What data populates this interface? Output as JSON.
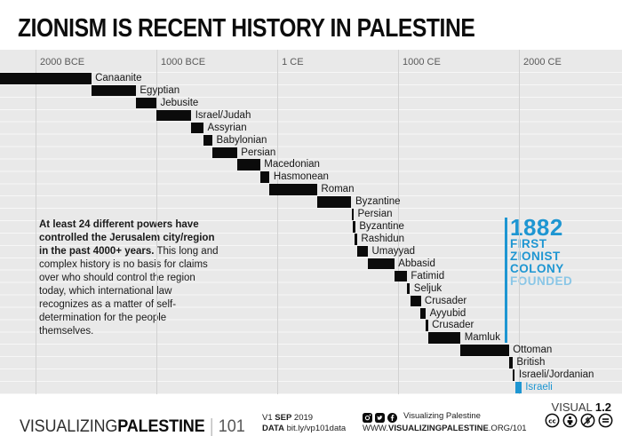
{
  "title": "ZIONISM IS RECENT HISTORY IN PALESTINE",
  "chart_data": {
    "type": "bar",
    "variant": "gantt-timeline",
    "title": "Powers that controlled the Jerusalem city/region",
    "unit": "year (negative = BCE)",
    "x_range": {
      "min_year": -2294,
      "max_year": 2850
    },
    "x_ticks": [
      {
        "label": "2000 BCE",
        "year": -2000
      },
      {
        "label": "1000 BCE",
        "year": -1000
      },
      {
        "label": "1 CE",
        "year": 1
      },
      {
        "label": "1000 CE",
        "year": 1000
      },
      {
        "label": "2000 CE",
        "year": 2000
      }
    ],
    "rows": [
      {
        "label": "Canaanite",
        "start": -2294,
        "end": -1540
      },
      {
        "label": "Egyptian",
        "start": -1540,
        "end": -1170
      },
      {
        "label": "Jebusite",
        "start": -1170,
        "end": -1000
      },
      {
        "label": "Israel/Judah",
        "start": -1000,
        "end": -712
      },
      {
        "label": "Assyrian",
        "start": -712,
        "end": -610
      },
      {
        "label": "Babylonian",
        "start": -610,
        "end": -537
      },
      {
        "label": "Persian",
        "start": -537,
        "end": -332
      },
      {
        "label": "Macedonian",
        "start": -332,
        "end": -141
      },
      {
        "label": "Hasmonean",
        "start": -141,
        "end": -63
      },
      {
        "label": "Roman",
        "start": -63,
        "end": 330
      },
      {
        "label": "Byzantine",
        "start": 330,
        "end": 614
      },
      {
        "label": "Persian",
        "start": 614,
        "end": 628
      },
      {
        "label": "Byzantine",
        "start": 628,
        "end": 636
      },
      {
        "label": "Rashidun",
        "start": 636,
        "end": 661
      },
      {
        "label": "Umayyad",
        "start": 661,
        "end": 750
      },
      {
        "label": "Abbasid",
        "start": 750,
        "end": 969
      },
      {
        "label": "Fatimid",
        "start": 969,
        "end": 1073
      },
      {
        "label": "Seljuk",
        "start": 1073,
        "end": 1098
      },
      {
        "label": "Crusader",
        "start": 1099,
        "end": 1187
      },
      {
        "label": "Ayyubid",
        "start": 1187,
        "end": 1229
      },
      {
        "label": "Crusader",
        "start": 1229,
        "end": 1244
      },
      {
        "label": "Mamluk",
        "start": 1250,
        "end": 1516
      },
      {
        "label": "Ottoman",
        "start": 1516,
        "end": 1917
      },
      {
        "label": "British",
        "start": 1917,
        "end": 1948
      },
      {
        "label": "Israeli/Jordanian",
        "start": 1948,
        "end": 1967
      },
      {
        "label": "Israeli",
        "start": 1967,
        "end": 2020,
        "highlight": true
      }
    ],
    "event_line": {
      "year": 1882,
      "label_year": "1882",
      "label_lines": [
        "FIRST",
        "ZIONIST",
        "COLONY"
      ],
      "label_light": "FOUNDED"
    },
    "colors": {
      "bar": "#0b0b0b",
      "highlight": "#1e96d2",
      "highlight_light": "#8ac6e6",
      "chart_bg": "#e9e9e9",
      "gridline": "#d2d2d2"
    },
    "legend": "none",
    "grid": "vertical-major"
  },
  "description": {
    "bold": "At least 24 different powers have controlled the Jerusalem city/region in the past 4000+ years.",
    "regular": " This long and complex history is no basis for claims over who should control the region today, which international law recognizes as a matter of self-determination for the people themselves."
  },
  "footer": {
    "brand": {
      "part1": "VISUALIZING",
      "part2": "PALESTINE",
      "suffix": "101"
    },
    "version": {
      "v": "V1",
      "month": "SEP",
      "year": "2019"
    },
    "data_source": {
      "label": "DATA",
      "value": "bit.ly/vp101data"
    },
    "social": {
      "icons": [
        "instagram-icon",
        "twitter-icon",
        "facebook-icon"
      ],
      "handle": "Visualizing Palestine",
      "url_prefix": "WWW.",
      "url_bold": "VISUALIZINGPALESTINE",
      "url_suffix": ".ORG/101"
    },
    "visual_version": {
      "label": "VISUAL",
      "number": "1.2"
    },
    "license_icons": [
      "cc-icon",
      "attribution-icon",
      "non-commercial-icon",
      "no-derivatives-icon"
    ]
  }
}
